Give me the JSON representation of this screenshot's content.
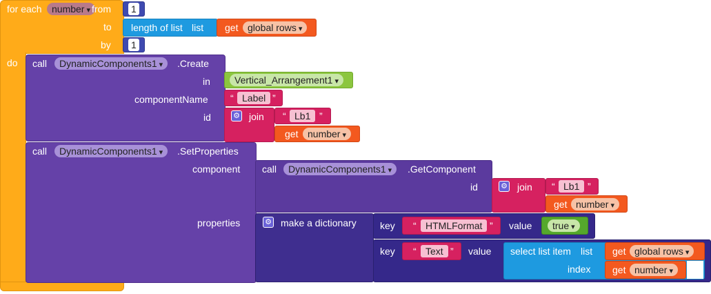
{
  "foreach": {
    "label": "for each",
    "var": "number",
    "from": "from",
    "to": "to",
    "by": "by",
    "do": "do",
    "from_val": "1",
    "by_val": "1"
  },
  "length_list": {
    "label": "length of list",
    "list": "list"
  },
  "get_rows_1": {
    "get": "get",
    "var": "global rows"
  },
  "create": {
    "call": "call",
    "component": "DynamicComponents1",
    "method": ".Create",
    "in": "in",
    "in_val": "Vertical_Arrangement1",
    "componentName": "componentName",
    "componentName_val": "Label",
    "id": "id",
    "join": "join",
    "join_str": "Lb1",
    "get": "get",
    "get_var": "number"
  },
  "setprops": {
    "call": "call",
    "component": "DynamicComponents1",
    "method": ".SetProperties",
    "component_label": "component",
    "properties_label": "properties"
  },
  "getcomp": {
    "call": "call",
    "component": "DynamicComponents1",
    "method": ".GetComponent",
    "id": "id",
    "join": "join",
    "join_str": "Lb1",
    "get": "get",
    "get_var": "number"
  },
  "dict": {
    "label": "make a dictionary",
    "pair1": {
      "key": "key",
      "key_val": "HTMLFormat",
      "value": "value",
      "value_val": "true"
    },
    "pair2": {
      "key": "key",
      "key_val": "Text",
      "value": "value"
    }
  },
  "select": {
    "label": "select list item",
    "list": "list",
    "index": "index",
    "get1": "get",
    "var1": "global rows",
    "get2": "get",
    "var2": "number"
  },
  "colors": {
    "control": "#FFAB19",
    "component": "#6541A8",
    "dictionary": "#3F2E8F",
    "list": "#1E9AE0",
    "variable": "#F3591F",
    "text": "#D62160",
    "logic": "#55A82C"
  }
}
